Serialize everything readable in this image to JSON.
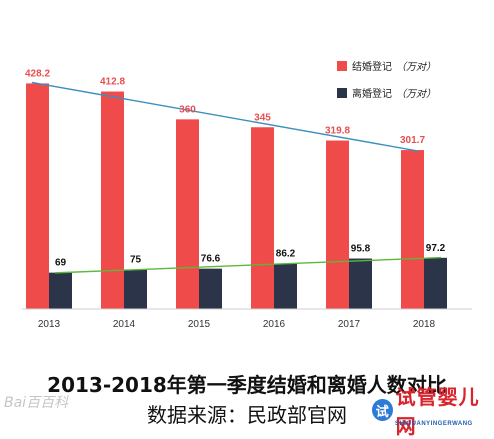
{
  "chart_data": {
    "type": "bar",
    "categories": [
      "2013",
      "2014",
      "2015",
      "2016",
      "2017",
      "2018"
    ],
    "series": [
      {
        "name": "结婚登记",
        "values": [
          428.2,
          412.8,
          360,
          345,
          319.8,
          301.7
        ],
        "color": "#f04b4b",
        "label_color": "#e84f4f"
      },
      {
        "name": "离婚登记",
        "values": [
          69,
          75,
          76.6,
          86.2,
          95.8,
          97.2
        ],
        "color": "#2b3448",
        "label_color": "#111111"
      }
    ],
    "data_labels": [
      [
        "428.2",
        "412.8",
        "360",
        "345",
        "319.8",
        "301.7"
      ],
      [
        "69",
        "75",
        "76.6",
        "86.2",
        "95.8",
        "97.2"
      ]
    ],
    "legend": {
      "placement": "top-right",
      "items": [
        {
          "label": "结婚登记",
          "unit": "（万对）"
        },
        {
          "label": "离婚登记",
          "unit": "（万对）"
        }
      ]
    },
    "trend_lines": [
      {
        "series": "结婚登记",
        "color": "#3a8fbf"
      },
      {
        "series": "离婚登记",
        "color": "#5cb83a"
      }
    ],
    "ylim": [
      0,
      500
    ],
    "grid": false,
    "title": "2013-2018年第一季度结婚和离婚人数对比",
    "source": "数据来源：民政部官网"
  },
  "watermarks": {
    "baidu": "Bai百百科",
    "site_logo": "试",
    "site_name": "试管婴儿网",
    "site_sub": "SHIGUANYINGERWANG"
  }
}
